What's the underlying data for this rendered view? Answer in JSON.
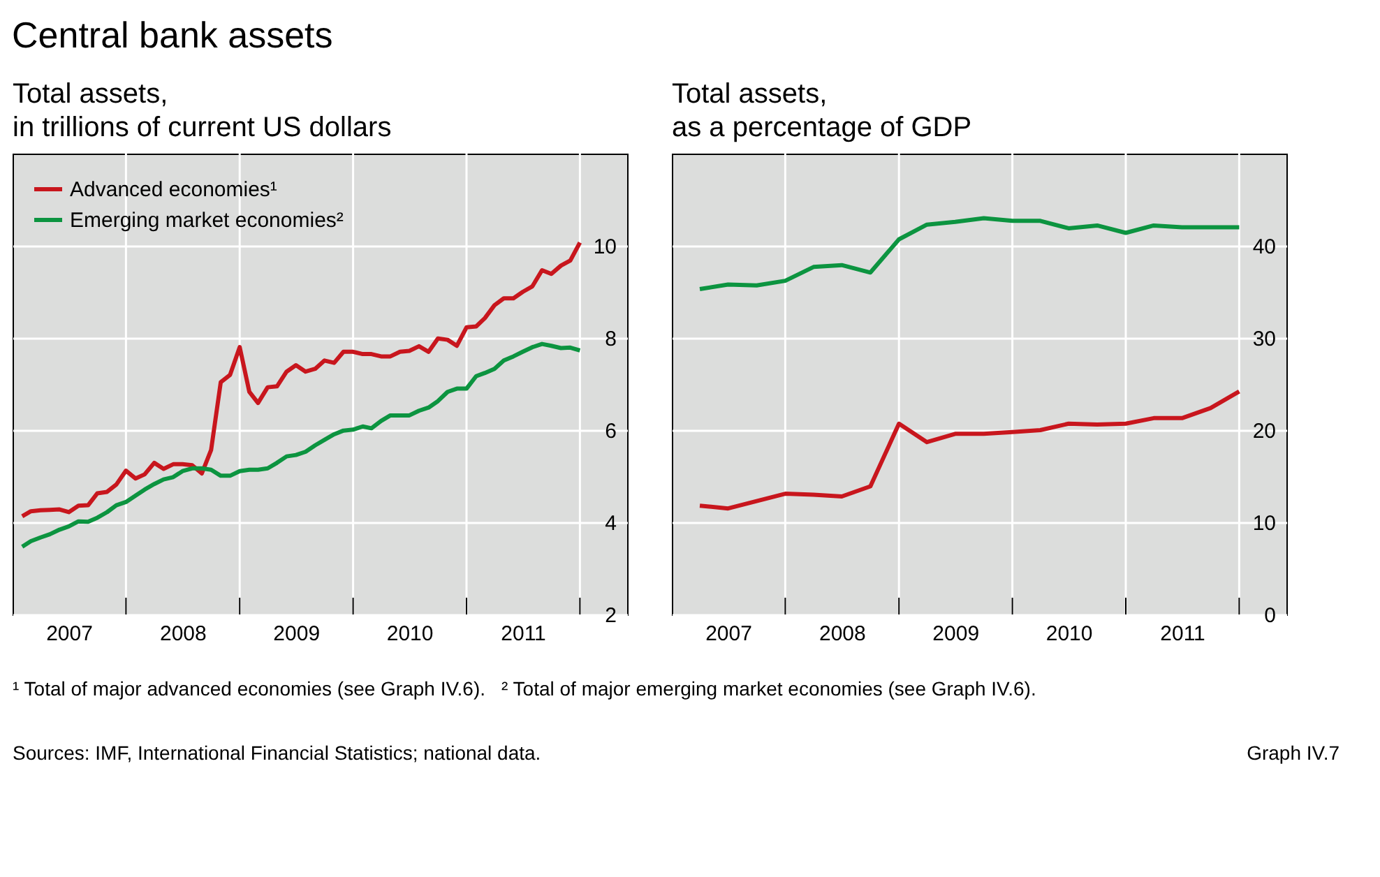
{
  "chart_data": [
    {
      "type": "line",
      "title": "Central bank assets",
      "subtitle": "Total assets,\nin trillions of current US dollars",
      "x": [
        "2007-02",
        "2007-03",
        "2007-04",
        "2007-05",
        "2007-06",
        "2007-07",
        "2007-08",
        "2007-09",
        "2007-10",
        "2007-11",
        "2007-12",
        "2008-01",
        "2008-02",
        "2008-03",
        "2008-04",
        "2008-05",
        "2008-06",
        "2008-07",
        "2008-08",
        "2008-09",
        "2008-10",
        "2008-11",
        "2008-12",
        "2009-01",
        "2009-02",
        "2009-03",
        "2009-04",
        "2009-05",
        "2009-06",
        "2009-07",
        "2009-08",
        "2009-09",
        "2009-10",
        "2009-11",
        "2009-12",
        "2010-01",
        "2010-02",
        "2010-03",
        "2010-04",
        "2010-05",
        "2010-06",
        "2010-07",
        "2010-08",
        "2010-09",
        "2010-10",
        "2010-11",
        "2010-12",
        "2011-01",
        "2011-02",
        "2011-03",
        "2011-04",
        "2011-05",
        "2011-06",
        "2011-07",
        "2011-08",
        "2011-09",
        "2011-10",
        "2011-11",
        "2011-12",
        "2012-01"
      ],
      "series": [
        {
          "name": "Advanced economies¹",
          "color": "#c8161d",
          "values": [
            4.13,
            4.24,
            4.26,
            4.27,
            4.28,
            4.22,
            4.36,
            4.37,
            4.63,
            4.66,
            4.82,
            5.12,
            4.95,
            5.04,
            5.29,
            5.16,
            5.26,
            5.26,
            5.24,
            5.06,
            5.57,
            7.04,
            7.2,
            7.8,
            6.83,
            6.59,
            6.93,
            6.95,
            7.27,
            7.41,
            7.27,
            7.33,
            7.51,
            7.46,
            7.7,
            7.7,
            7.65,
            7.65,
            7.6,
            7.6,
            7.7,
            7.72,
            7.82,
            7.7,
            7.99,
            7.96,
            7.83,
            8.23,
            8.25,
            8.43,
            8.71,
            8.86,
            8.86,
            9.0,
            9.12,
            9.47,
            9.39,
            9.57,
            9.68,
            10.07
          ]
        },
        {
          "name": "Emerging market economies²",
          "color": "#0c9440",
          "values": [
            3.47,
            3.59,
            3.67,
            3.74,
            3.84,
            3.91,
            4.02,
            4.01,
            4.1,
            4.22,
            4.37,
            4.44,
            4.58,
            4.71,
            4.83,
            4.93,
            4.98,
            5.11,
            5.17,
            5.17,
            5.14,
            5.01,
            5.01,
            5.11,
            5.14,
            5.14,
            5.17,
            5.29,
            5.43,
            5.46,
            5.53,
            5.67,
            5.79,
            5.91,
            5.99,
            6.01,
            6.08,
            6.04,
            6.2,
            6.32,
            6.32,
            6.32,
            6.42,
            6.49,
            6.63,
            6.83,
            6.9,
            6.9,
            7.17,
            7.24,
            7.33,
            7.51,
            7.6,
            7.7,
            7.8,
            7.87,
            7.83,
            7.78,
            7.79,
            7.73
          ]
        }
      ],
      "xlim": [
        "2007-01",
        "2012-06"
      ],
      "xticks": [
        {
          "value": "2007-07",
          "label": "2007"
        },
        {
          "value": "2008-01",
          "label": null
        },
        {
          "value": "2008-07",
          "label": "2008"
        },
        {
          "value": "2009-01",
          "label": null
        },
        {
          "value": "2009-07",
          "label": "2009"
        },
        {
          "value": "2010-01",
          "label": null
        },
        {
          "value": "2010-07",
          "label": "2010"
        },
        {
          "value": "2011-01",
          "label": null
        },
        {
          "value": "2011-07",
          "label": "2011"
        },
        {
          "value": "2012-01",
          "label": null
        }
      ],
      "ylim": [
        2,
        12
      ],
      "yticks": [
        2,
        4,
        6,
        8,
        10
      ],
      "grid": true,
      "legend": "top left",
      "line_style": "solid",
      "marker": "none",
      "annotations": [
        "¹ Total of major advanced economies (see Graph IV.6).",
        "² Total of major emerging market economies (see Graph IV.6).",
        "Sources: IMF, International Financial Statistics; national data.",
        "Graph IV.7"
      ]
    },
    {
      "type": "line",
      "subtitle": "Total assets,\nas a percentage of GDP",
      "x": [
        "2007-04",
        "2007-07",
        "2007-10",
        "2008-01",
        "2008-04",
        "2008-07",
        "2008-10",
        "2009-01",
        "2009-04",
        "2009-07",
        "2009-10",
        "2010-01",
        "2010-04",
        "2010-07",
        "2010-10",
        "2011-01",
        "2011-04",
        "2011-07",
        "2011-10",
        "2012-01"
      ],
      "series": [
        {
          "color": "#c8161d",
          "values": [
            11.8,
            11.5,
            12.3,
            13.1,
            13.0,
            12.8,
            13.9,
            20.7,
            18.7,
            19.6,
            19.6,
            19.8,
            20.0,
            20.7,
            20.6,
            20.7,
            21.3,
            21.3,
            22.4,
            24.2
          ]
        },
        {
          "color": "#0c9440",
          "values": [
            35.3,
            35.8,
            35.7,
            36.2,
            37.7,
            37.9,
            37.1,
            40.7,
            42.3,
            42.6,
            43.0,
            42.7,
            42.7,
            41.9,
            42.2,
            41.4,
            42.2,
            42.0,
            42.0,
            42.0
          ]
        }
      ],
      "xlim": [
        "2007-01",
        "2012-06"
      ],
      "xticks": [
        {
          "value": "2007-07",
          "label": "2007"
        },
        {
          "value": "2008-01",
          "label": null
        },
        {
          "value": "2008-07",
          "label": "2008"
        },
        {
          "value": "2009-01",
          "label": null
        },
        {
          "value": "2009-07",
          "label": "2009"
        },
        {
          "value": "2010-01",
          "label": null
        },
        {
          "value": "2010-07",
          "label": "2010"
        },
        {
          "value": "2011-01",
          "label": null
        },
        {
          "value": "2011-07",
          "label": "2011"
        },
        {
          "value": "2012-01",
          "label": null
        }
      ],
      "ylim": [
        0,
        50
      ],
      "yticks": [
        0,
        10,
        20,
        30,
        40
      ],
      "grid": true,
      "legend": false,
      "line_style": "solid",
      "marker": "none"
    }
  ]
}
